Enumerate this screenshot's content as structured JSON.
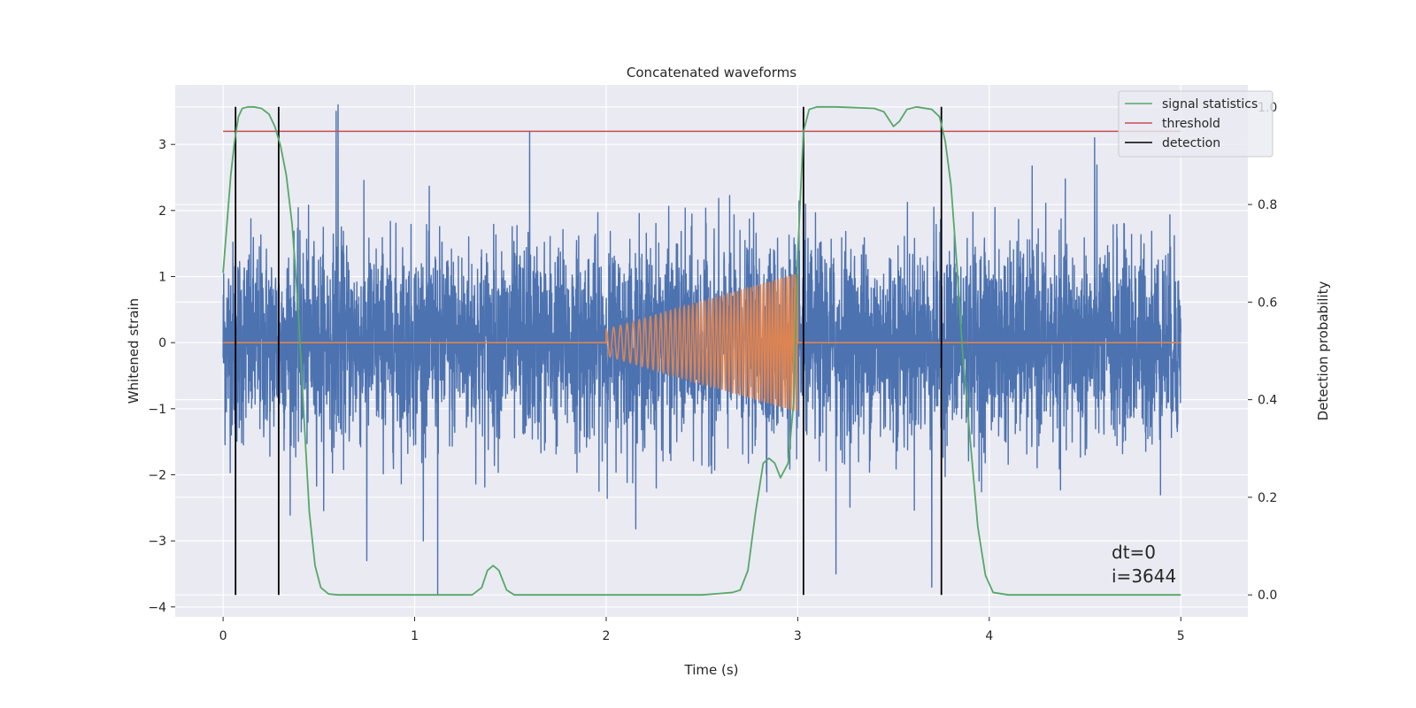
{
  "chart_data": {
    "type": "line",
    "title": "Concatenated waveforms",
    "xlabel": "Time (s)",
    "ylabel_left": "Whitened strain",
    "ylabel_right": "Detection probability",
    "xlim": [
      -0.25,
      5.35
    ],
    "ylim_left": [
      -4.15,
      3.9
    ],
    "ylim_right": [
      -0.045,
      1.045
    ],
    "x_ticks": [
      0,
      1,
      2,
      3,
      4,
      5
    ],
    "y_ticks_left": [
      -4,
      -3,
      -2,
      -1,
      0,
      1,
      2,
      3
    ],
    "y_ticks_right": [
      0.0,
      0.2,
      0.4,
      0.6,
      0.8,
      1.0
    ],
    "grid": true,
    "legend_position": "top-right",
    "series": [
      {
        "key": "strain",
        "axis": "left",
        "color": "#4c72b0",
        "x_range": [
          0,
          5
        ],
        "typical_amplitude": [
          -2,
          2
        ],
        "peaks": [
          {
            "x": 0.59,
            "y": 3.5
          },
          {
            "x": 0.6,
            "y": 3.6
          },
          {
            "x": 1.12,
            "y": -3.8
          },
          {
            "x": 0.75,
            "y": -3.3
          },
          {
            "x": 1.6,
            "y": 3.2
          },
          {
            "x": 3.2,
            "y": -3.5
          },
          {
            "x": 3.7,
            "y": -3.7
          },
          {
            "x": 4.55,
            "y": 3.1
          }
        ]
      },
      {
        "key": "injected_signal",
        "axis": "left",
        "color": "#dd8452",
        "x_range": [
          0,
          5
        ],
        "chirp_start": 2.0,
        "chirp_end": 3.0,
        "chirp_start_amplitude": 0.2,
        "chirp_end_amplitude": 1.05
      },
      {
        "name": "signal statistics",
        "axis": "right",
        "color": "#55a868",
        "x": [
          0.0,
          0.02,
          0.04,
          0.06,
          0.08,
          0.1,
          0.13,
          0.16,
          0.2,
          0.24,
          0.27,
          0.3,
          0.33,
          0.36,
          0.39,
          0.42,
          0.45,
          0.48,
          0.51,
          0.55,
          0.6,
          1.0,
          1.3,
          1.35,
          1.38,
          1.41,
          1.44,
          1.48,
          1.52,
          1.6,
          2.0,
          2.5,
          2.6,
          2.66,
          2.7,
          2.74,
          2.78,
          2.82,
          2.85,
          2.88,
          2.91,
          2.95,
          2.98,
          3.0,
          3.03,
          3.06,
          3.1,
          3.2,
          3.4,
          3.45,
          3.5,
          3.53,
          3.57,
          3.62,
          3.7,
          3.74,
          3.77,
          3.8,
          3.83,
          3.86,
          3.9,
          3.94,
          3.98,
          4.02,
          4.1,
          5.0
        ],
        "values": [
          0.66,
          0.76,
          0.86,
          0.93,
          0.98,
          0.997,
          1.0,
          1.0,
          0.997,
          0.985,
          0.96,
          0.92,
          0.86,
          0.76,
          0.6,
          0.38,
          0.17,
          0.06,
          0.015,
          0.002,
          0.0,
          0.0,
          0.0,
          0.015,
          0.05,
          0.06,
          0.05,
          0.01,
          0.0,
          0.0,
          0.0,
          0.0,
          0.003,
          0.005,
          0.01,
          0.05,
          0.17,
          0.27,
          0.28,
          0.27,
          0.24,
          0.27,
          0.4,
          0.7,
          0.95,
          0.995,
          1.0,
          1.0,
          0.997,
          0.99,
          0.96,
          0.97,
          0.995,
          1.0,
          0.995,
          0.98,
          0.93,
          0.84,
          0.68,
          0.5,
          0.32,
          0.14,
          0.04,
          0.005,
          0.0,
          0.0
        ]
      },
      {
        "name": "threshold",
        "axis": "right",
        "color": "#c44e52",
        "value": 0.95,
        "x_range": [
          0,
          5
        ]
      },
      {
        "name": "detection",
        "axis": "right",
        "color": "#000000",
        "x": [
          0.065,
          0.29,
          3.03,
          3.75
        ],
        "y_range": [
          0,
          1
        ]
      }
    ],
    "annotations": [
      "dt=0",
      "i=3644"
    ]
  }
}
